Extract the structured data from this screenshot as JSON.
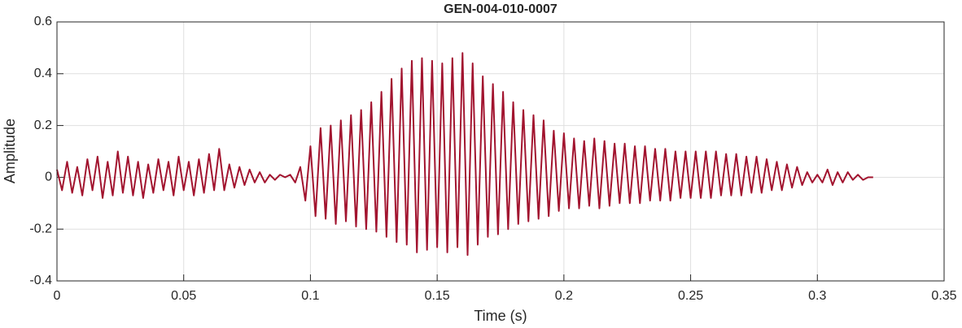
{
  "chart_data": {
    "type": "line",
    "title": "GEN-004-010-0007",
    "x_label": "Time (s)",
    "y_label": "Amplitude",
    "color": "#a2142f",
    "grid": true,
    "xlim": [
      0,
      0.35
    ],
    "xticks": [
      0,
      0.05,
      0.1,
      0.15,
      0.2,
      0.25,
      0.3,
      0.35
    ],
    "ylim": [
      -0.4,
      0.6
    ],
    "yticks": [
      -0.4,
      -0.2,
      0,
      0.2,
      0.4,
      0.6
    ],
    "x": [
      0,
      0.002,
      0.004,
      0.006,
      0.008,
      0.01,
      0.012,
      0.014,
      0.016,
      0.018,
      0.02,
      0.022,
      0.024,
      0.026,
      0.028,
      0.03,
      0.032,
      0.034,
      0.036,
      0.038,
      0.04,
      0.042,
      0.044,
      0.046,
      0.048,
      0.05,
      0.052,
      0.054,
      0.056,
      0.058,
      0.06,
      0.062,
      0.064,
      0.066,
      0.068,
      0.07,
      0.072,
      0.074,
      0.076,
      0.078,
      0.08,
      0.082,
      0.084,
      0.086,
      0.088,
      0.09,
      0.092,
      0.094,
      0.096,
      0.098,
      0.1,
      0.102,
      0.104,
      0.106,
      0.108,
      0.11,
      0.112,
      0.114,
      0.116,
      0.118,
      0.12,
      0.122,
      0.124,
      0.126,
      0.128,
      0.13,
      0.132,
      0.134,
      0.136,
      0.138,
      0.14,
      0.142,
      0.144,
      0.146,
      0.148,
      0.15,
      0.152,
      0.154,
      0.156,
      0.158,
      0.16,
      0.162,
      0.164,
      0.166,
      0.168,
      0.17,
      0.172,
      0.174,
      0.176,
      0.178,
      0.18,
      0.182,
      0.184,
      0.186,
      0.188,
      0.19,
      0.192,
      0.194,
      0.196,
      0.198,
      0.2,
      0.202,
      0.204,
      0.206,
      0.208,
      0.21,
      0.212,
      0.214,
      0.216,
      0.218,
      0.22,
      0.222,
      0.224,
      0.226,
      0.228,
      0.23,
      0.232,
      0.234,
      0.236,
      0.238,
      0.24,
      0.242,
      0.244,
      0.246,
      0.248,
      0.25,
      0.252,
      0.254,
      0.256,
      0.258,
      0.26,
      0.262,
      0.264,
      0.266,
      0.268,
      0.27,
      0.272,
      0.274,
      0.276,
      0.278,
      0.28,
      0.282,
      0.284,
      0.286,
      0.288,
      0.29,
      0.292,
      0.294,
      0.296,
      0.298,
      0.3,
      0.302,
      0.304,
      0.306,
      0.308,
      0.31,
      0.312,
      0.314,
      0.316,
      0.318,
      0.32,
      0.322
    ],
    "values": [
      0.03,
      -0.05,
      0.06,
      -0.06,
      0.04,
      -0.07,
      0.07,
      -0.05,
      0.08,
      -0.08,
      0.06,
      -0.07,
      0.1,
      -0.06,
      0.08,
      -0.07,
      0.06,
      -0.08,
      0.05,
      -0.06,
      0.07,
      -0.05,
      0.06,
      -0.07,
      0.08,
      -0.05,
      0.06,
      -0.07,
      0.07,
      -0.06,
      0.09,
      -0.05,
      0.11,
      -0.05,
      0.05,
      -0.04,
      0.04,
      -0.03,
      0.03,
      -0.02,
      0.02,
      -0.02,
      0.01,
      -0.01,
      0.01,
      0,
      0.01,
      -0.02,
      0.04,
      -0.09,
      0.12,
      -0.15,
      0.19,
      -0.16,
      0.2,
      -0.18,
      0.22,
      -0.17,
      0.24,
      -0.19,
      0.26,
      -0.2,
      0.29,
      -0.21,
      0.33,
      -0.23,
      0.38,
      -0.25,
      0.42,
      -0.26,
      0.45,
      -0.29,
      0.46,
      -0.28,
      0.45,
      -0.27,
      0.44,
      -0.29,
      0.46,
      -0.27,
      0.48,
      -0.3,
      0.44,
      -0.26,
      0.39,
      -0.23,
      0.36,
      -0.22,
      0.33,
      -0.2,
      0.29,
      -0.18,
      0.26,
      -0.17,
      0.24,
      -0.16,
      0.22,
      -0.15,
      0.18,
      -0.13,
      0.17,
      -0.12,
      0.15,
      -0.12,
      0.14,
      -0.11,
      0.15,
      -0.12,
      0.14,
      -0.11,
      0.13,
      -0.1,
      0.13,
      -0.1,
      0.12,
      -0.1,
      0.12,
      -0.09,
      0.11,
      -0.09,
      0.11,
      -0.09,
      0.1,
      -0.08,
      0.1,
      -0.08,
      0.1,
      -0.08,
      0.1,
      -0.08,
      0.1,
      -0.07,
      0.09,
      -0.07,
      0.09,
      -0.07,
      0.08,
      -0.06,
      0.08,
      -0.06,
      0.07,
      -0.05,
      0.06,
      -0.05,
      0.05,
      -0.04,
      0.04,
      -0.03,
      0.02,
      -0.02,
      0.01,
      -0.02,
      0.03,
      -0.03,
      0.02,
      -0.02,
      0.02,
      -0.01,
      0.01,
      -0.01,
      0,
      0
    ]
  }
}
